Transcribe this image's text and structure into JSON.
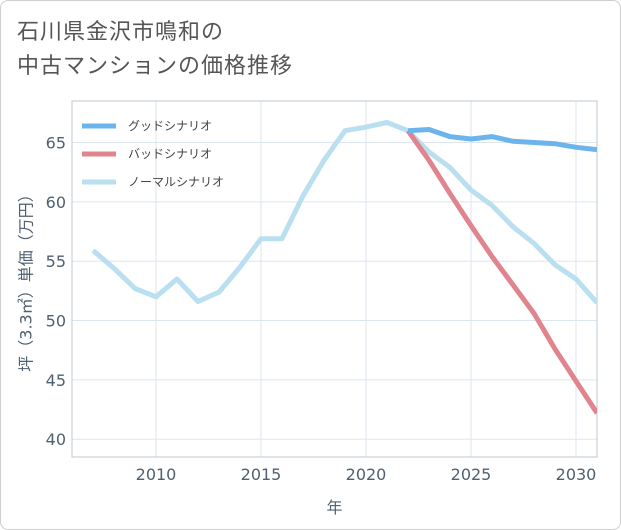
{
  "title_lines": [
    "石川県金沢市鳴和の",
    "中古マンションの価格推移"
  ],
  "chart_data": {
    "type": "line",
    "xlabel": "年",
    "ylabel": "坪（3.3㎡）単価（万円）",
    "xlim": [
      2006,
      2031
    ],
    "ylim": [
      38.5,
      68.5
    ],
    "xticks": [
      2010,
      2015,
      2020,
      2025,
      2030
    ],
    "yticks": [
      40,
      45,
      50,
      55,
      60,
      65
    ],
    "grid": true,
    "legend_position": "top-left",
    "series": [
      {
        "name": "グッドシナリオ",
        "color": "#6cb4ec",
        "x": [
          2022,
          2023,
          2024,
          2025,
          2026,
          2027,
          2028,
          2029,
          2030,
          2031
        ],
        "values": [
          66.0,
          66.1,
          65.5,
          65.3,
          65.5,
          65.1,
          65.0,
          64.9,
          64.6,
          64.4
        ]
      },
      {
        "name": "バッドシナリオ",
        "color": "#e0848e",
        "x": [
          2022,
          2023,
          2024,
          2025,
          2026,
          2027,
          2028,
          2029,
          2030,
          2031
        ],
        "values": [
          66.0,
          63.5,
          60.7,
          58.0,
          55.4,
          53.0,
          50.6,
          47.6,
          44.9,
          42.2
        ]
      },
      {
        "name": "ノーマルシナリオ",
        "color": "#b9dff0",
        "x": [
          2007,
          2008,
          2009,
          2010,
          2011,
          2012,
          2013,
          2014,
          2015,
          2016,
          2017,
          2018,
          2019,
          2020,
          2021,
          2022,
          2023,
          2024,
          2025,
          2026,
          2027,
          2028,
          2029,
          2030,
          2031
        ],
        "values": [
          55.9,
          54.4,
          52.7,
          52.0,
          53.5,
          51.6,
          52.4,
          54.5,
          56.9,
          56.9,
          60.5,
          63.5,
          66.0,
          66.3,
          66.7,
          66.0,
          64.2,
          62.9,
          61.0,
          59.7,
          57.9,
          56.5,
          54.7,
          53.5,
          51.5
        ]
      }
    ]
  }
}
